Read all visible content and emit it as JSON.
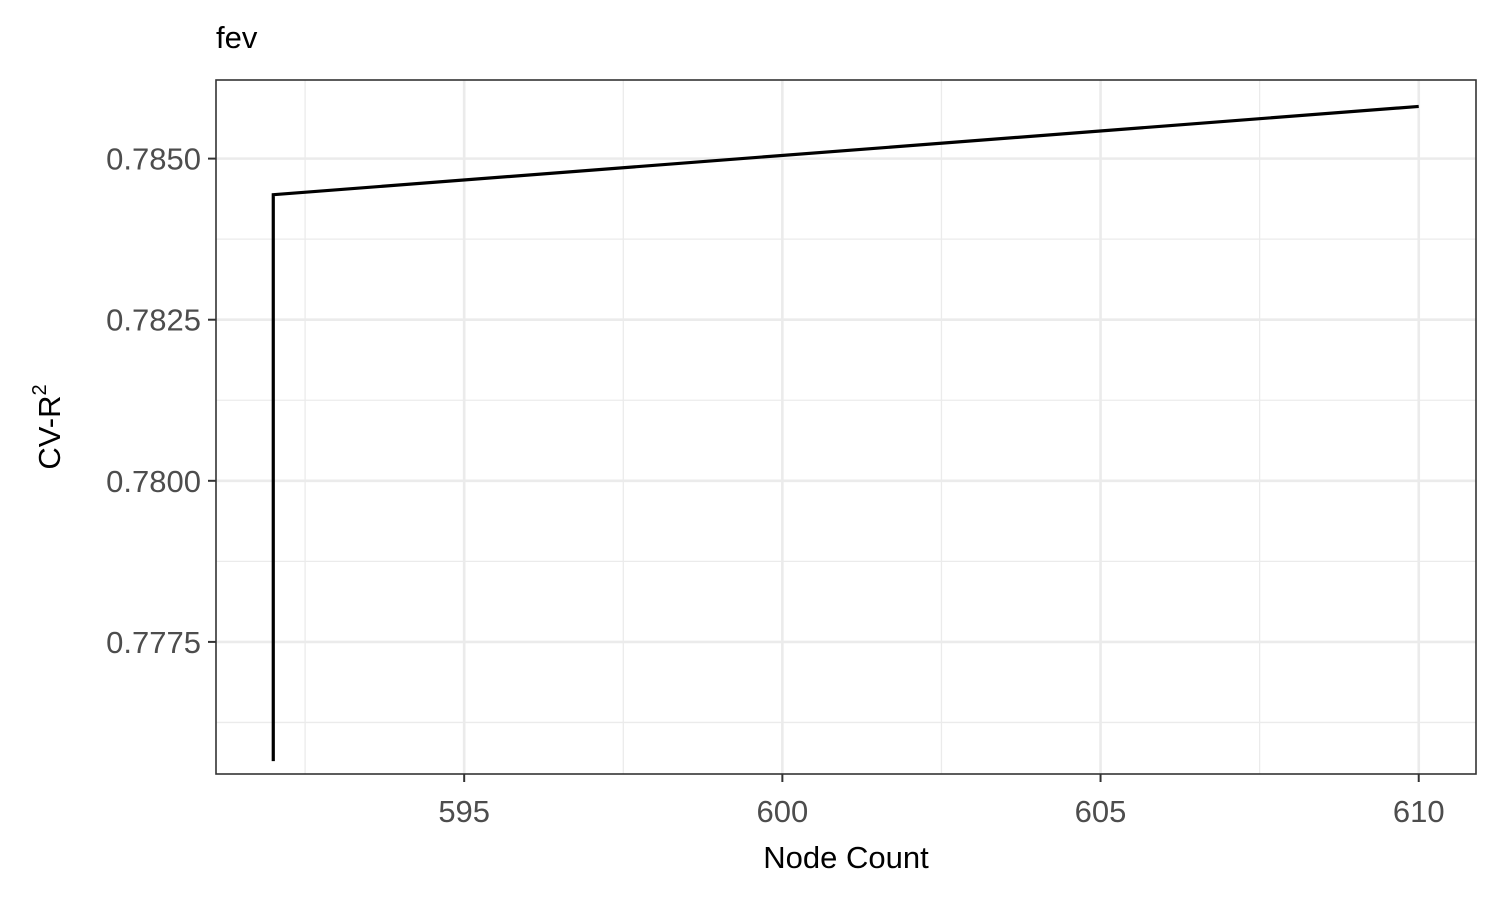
{
  "chart_data": {
    "type": "line",
    "title": "fev",
    "xlabel": "Node Count",
    "ylabel": "CV-R",
    "ylabel_superscript": "2",
    "xlim": [
      591.1,
      610.9
    ],
    "ylim": [
      0.77545,
      0.78622
    ],
    "x_ticks": [
      595,
      600,
      605,
      610
    ],
    "x_tick_labels": [
      "595",
      "600",
      "605",
      "610"
    ],
    "x_minor_ticks": [
      592.5,
      597.5,
      602.5,
      607.5
    ],
    "y_ticks": [
      0.7775,
      0.78,
      0.7825,
      0.785
    ],
    "y_tick_labels": [
      "0.7775",
      "0.7800",
      "0.7825",
      "0.7850"
    ],
    "y_minor_ticks": [
      0.77625,
      0.77875,
      0.78125,
      0.78375,
      0.78625
    ],
    "grid": true,
    "series": [
      {
        "color": "#000000",
        "x": [
          592,
          592,
          610
        ],
        "y": [
          0.77565,
          0.78444,
          0.78581
        ]
      }
    ]
  }
}
